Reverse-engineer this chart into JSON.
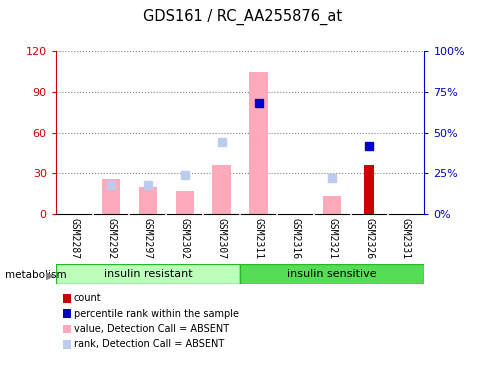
{
  "title": "GDS161 / RC_AA255876_at",
  "samples": [
    "GSM2287",
    "GSM2292",
    "GSM2297",
    "GSM2302",
    "GSM2307",
    "GSM2311",
    "GSM2316",
    "GSM2321",
    "GSM2326",
    "GSM2331"
  ],
  "pink_bars": [
    0,
    26,
    20,
    17,
    36,
    105,
    0,
    13,
    0,
    0
  ],
  "light_blue_squares": [
    null,
    18,
    18,
    24,
    44,
    null,
    null,
    22,
    null,
    null
  ],
  "dark_blue_squares": [
    null,
    null,
    null,
    null,
    null,
    68,
    null,
    null,
    42,
    null
  ],
  "red_bars": [
    0,
    0,
    0,
    0,
    0,
    0,
    0,
    0,
    36,
    0
  ],
  "left_ylim": [
    0,
    120
  ],
  "right_ylim": [
    0,
    100
  ],
  "left_yticks": [
    0,
    30,
    60,
    90,
    120
  ],
  "right_yticks": [
    0,
    25,
    50,
    75,
    100
  ],
  "left_ytick_labels": [
    "0",
    "30",
    "60",
    "90",
    "120"
  ],
  "right_ytick_labels": [
    "0%",
    "25%",
    "50%",
    "75%",
    "100%"
  ],
  "left_color": "#cc0000",
  "right_color": "#0000cc",
  "group1_label": "insulin resistant",
  "group2_label": "insulin sensitive",
  "metabolism_label": "metabolism",
  "group1_color": "#bbffbb",
  "group2_color": "#55dd55",
  "legend_colors": [
    "#cc0000",
    "#0000cc",
    "#ffaabb",
    "#bbccee"
  ],
  "legend_labels": [
    "count",
    "percentile rank within the sample",
    "value, Detection Call = ABSENT",
    "rank, Detection Call = ABSENT"
  ],
  "bg_color": "#ffffff",
  "plot_bg_color": "#ffffff",
  "tick_label_area_color": "#cccccc",
  "bar_width": 0.5,
  "pink_color": "#ffaabb",
  "light_blue_color": "#bbccee",
  "dark_blue_color": "#0000cc",
  "red_color": "#cc0000"
}
